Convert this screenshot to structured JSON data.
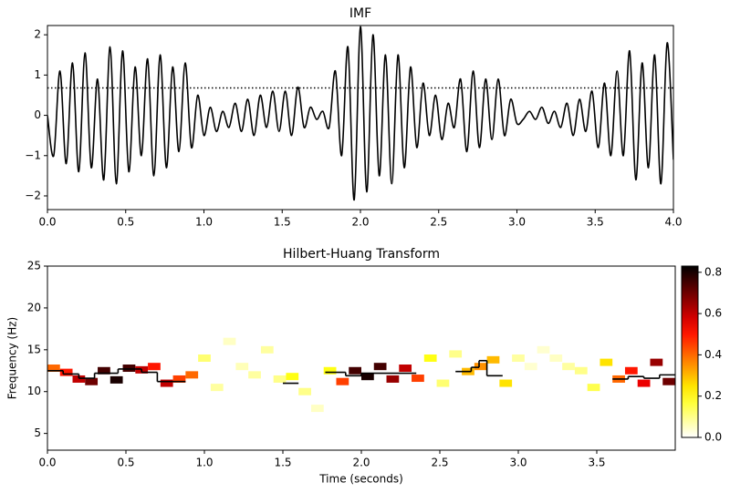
{
  "chart_data": [
    {
      "type": "line",
      "title": "IMF",
      "color": "#000000",
      "x": [
        0,
        0.04,
        0.08,
        0.12,
        0.16,
        0.2,
        0.24,
        0.28,
        0.32,
        0.36,
        0.4,
        0.44,
        0.48,
        0.52,
        0.56,
        0.6,
        0.64,
        0.68,
        0.72,
        0.76,
        0.8,
        0.84,
        0.88,
        0.92,
        0.96,
        1.0,
        1.04,
        1.08,
        1.12,
        1.16,
        1.2,
        1.24,
        1.28,
        1.32,
        1.36,
        1.4,
        1.44,
        1.48,
        1.52,
        1.56,
        1.6,
        1.64,
        1.68,
        1.72,
        1.76,
        1.8,
        1.84,
        1.88,
        1.92,
        1.96,
        2.0,
        2.04,
        2.08,
        2.12,
        2.16,
        2.2,
        2.24,
        2.28,
        2.32,
        2.36,
        2.4,
        2.44,
        2.48,
        2.52,
        2.56,
        2.6,
        2.64,
        2.68,
        2.72,
        2.76,
        2.8,
        2.84,
        2.88,
        2.92,
        2.96,
        3.0,
        3.04,
        3.08,
        3.12,
        3.16,
        3.2,
        3.24,
        3.28,
        3.32,
        3.36,
        3.4,
        3.44,
        3.48,
        3.52,
        3.56,
        3.6,
        3.64,
        3.68,
        3.72,
        3.76,
        3.8,
        3.84,
        3.88,
        3.92,
        3.96,
        4.0
      ],
      "values": [
        0,
        -1.0,
        1.1,
        -1.2,
        1.3,
        -1.4,
        1.55,
        -1.3,
        0.9,
        -1.6,
        1.7,
        -1.7,
        1.6,
        -1.4,
        1.2,
        -1.0,
        1.4,
        -1.5,
        1.5,
        -1.3,
        1.2,
        -0.9,
        1.3,
        -0.8,
        0.5,
        -0.5,
        0.2,
        -0.4,
        0.1,
        -0.3,
        0.3,
        -0.4,
        0.4,
        -0.5,
        0.5,
        -0.3,
        0.6,
        -0.4,
        0.6,
        -0.5,
        0.7,
        -0.3,
        0.2,
        -0.1,
        0.1,
        -0.3,
        1.1,
        -1.0,
        1.7,
        -2.1,
        2.2,
        -1.9,
        2.0,
        -1.5,
        1.5,
        -1.7,
        1.5,
        -1.3,
        1.2,
        -0.8,
        0.8,
        -0.5,
        0.5,
        -0.6,
        0.3,
        -0.3,
        0.9,
        -0.9,
        1.1,
        -0.8,
        0.9,
        -0.6,
        0.9,
        -0.5,
        0.4,
        -0.2,
        -0.1,
        0.1,
        -0.1,
        0.2,
        -0.2,
        0.1,
        -0.3,
        0.3,
        -0.5,
        0.4,
        -0.4,
        0.6,
        -0.8,
        0.8,
        -1.0,
        1.1,
        -1.0,
        1.6,
        -1.6,
        1.3,
        -1.3,
        1.5,
        -1.7,
        1.8,
        -1.1
      ],
      "reference_line": 0.68,
      "xlim": [
        0,
        4
      ],
      "ylim": [
        -2.34,
        2.23
      ],
      "xticks": [
        {
          "value": 0,
          "label": "0.0"
        },
        {
          "value": 0.5,
          "label": "0.5"
        },
        {
          "value": 1,
          "label": "1.0"
        },
        {
          "value": 1.5,
          "label": "1.5"
        },
        {
          "value": 2,
          "label": "2.0"
        },
        {
          "value": 2.5,
          "label": "2.5"
        },
        {
          "value": 3,
          "label": "3.0"
        },
        {
          "value": 3.5,
          "label": "3.5"
        },
        {
          "value": 4,
          "label": "4.0"
        }
      ],
      "yticks": [
        {
          "value": -2,
          "label": "−2"
        },
        {
          "value": -1,
          "label": "−1"
        },
        0,
        1,
        2
      ]
    },
    {
      "type": "heatmap",
      "title": "Hilbert-Huang Transform",
      "xlabel": "Time (seconds)",
      "ylabel": "Frequency (Hz)",
      "colormap": "hot_r",
      "clim": [
        0,
        0.83
      ],
      "color": "#000000",
      "x": [
        0,
        0.08,
        0.16,
        0.24,
        0.32,
        0.4,
        0.48,
        0.56,
        0.64,
        0.72,
        0.8,
        0.88,
        0.96,
        1.04,
        1.12,
        1.2,
        1.28,
        1.36,
        1.44,
        1.52,
        1.6,
        1.68,
        1.76,
        1.84,
        1.92,
        2.0,
        2.08,
        2.16,
        2.24,
        2.32,
        2.4,
        2.48,
        2.56,
        2.64,
        2.72,
        2.8,
        2.88,
        2.96,
        3.04,
        3.12,
        3.2,
        3.28,
        3.36,
        3.44,
        3.52,
        3.6,
        3.68,
        3.76,
        3.84,
        3.92
      ],
      "frequency": [
        12.8,
        12.3,
        11.5,
        11.2,
        12.5,
        11.4,
        12.8,
        12.6,
        13.0,
        11.0,
        11.5,
        12.0,
        14.0,
        10.5,
        16.0,
        13.0,
        12.0,
        15.0,
        11.5,
        11.8,
        10.0,
        8.0,
        12.5,
        11.2,
        12.5,
        11.8,
        13.0,
        11.5,
        12.8,
        11.6,
        14.0,
        11.0,
        14.5,
        12.4,
        13.0,
        13.8,
        11.0,
        14.0,
        13.0,
        15.0,
        14.0,
        13.0,
        12.5,
        10.5,
        13.5,
        11.5,
        12.5,
        11.0,
        13.5,
        11.2
      ],
      "amplitude": [
        0.4,
        0.5,
        0.6,
        0.7,
        0.75,
        0.8,
        0.75,
        0.6,
        0.5,
        0.6,
        0.45,
        0.4,
        0.12,
        0.08,
        0.05,
        0.06,
        0.08,
        0.08,
        0.1,
        0.2,
        0.1,
        0.05,
        0.2,
        0.45,
        0.75,
        0.8,
        0.75,
        0.65,
        0.6,
        0.45,
        0.2,
        0.12,
        0.1,
        0.3,
        0.35,
        0.3,
        0.25,
        0.08,
        0.04,
        0.04,
        0.05,
        0.08,
        0.1,
        0.15,
        0.25,
        0.4,
        0.5,
        0.55,
        0.65,
        0.7
      ],
      "steps": {
        "start": [
          0,
          0.1,
          0.2,
          0.3,
          0.45,
          0.6,
          0.7,
          1.5,
          1.77,
          1.9,
          2.0,
          2.6,
          2.7,
          2.75,
          2.8,
          3.6,
          3.7,
          3.8,
          3.9
        ],
        "end": [
          0.1,
          0.2,
          0.3,
          0.45,
          0.6,
          0.7,
          0.88,
          1.6,
          1.9,
          2.0,
          2.35,
          2.7,
          2.75,
          2.8,
          2.9,
          3.7,
          3.8,
          3.9,
          4.0
        ],
        "values": [
          12.5,
          12.1,
          11.6,
          12.2,
          12.7,
          12.3,
          11.2,
          11.0,
          12.3,
          11.9,
          12.2,
          12.4,
          12.9,
          13.7,
          11.9,
          11.5,
          11.8,
          11.6,
          12.0
        ]
      },
      "xlim": [
        0,
        4
      ],
      "ylim": [
        3,
        25
      ],
      "xticks": [
        {
          "value": 0,
          "label": "0.0"
        },
        {
          "value": 0.5,
          "label": "0.5"
        },
        {
          "value": 1,
          "label": "1.0"
        },
        {
          "value": 1.5,
          "label": "1.5"
        },
        {
          "value": 2,
          "label": "2.0"
        },
        {
          "value": 2.5,
          "label": "2.5"
        },
        {
          "value": 3,
          "label": "3.0"
        },
        {
          "value": 3.5,
          "label": "3.5"
        }
      ],
      "yticks": [
        5,
        10,
        15,
        20,
        25
      ],
      "colorbar_ticks": [
        {
          "value": 0,
          "label": "0.0"
        },
        {
          "value": 0.2,
          "label": "0.2"
        },
        {
          "value": 0.4,
          "label": "0.4"
        },
        {
          "value": 0.6,
          "label": "0.6"
        },
        {
          "value": 0.8,
          "label": "0.8"
        }
      ]
    }
  ]
}
